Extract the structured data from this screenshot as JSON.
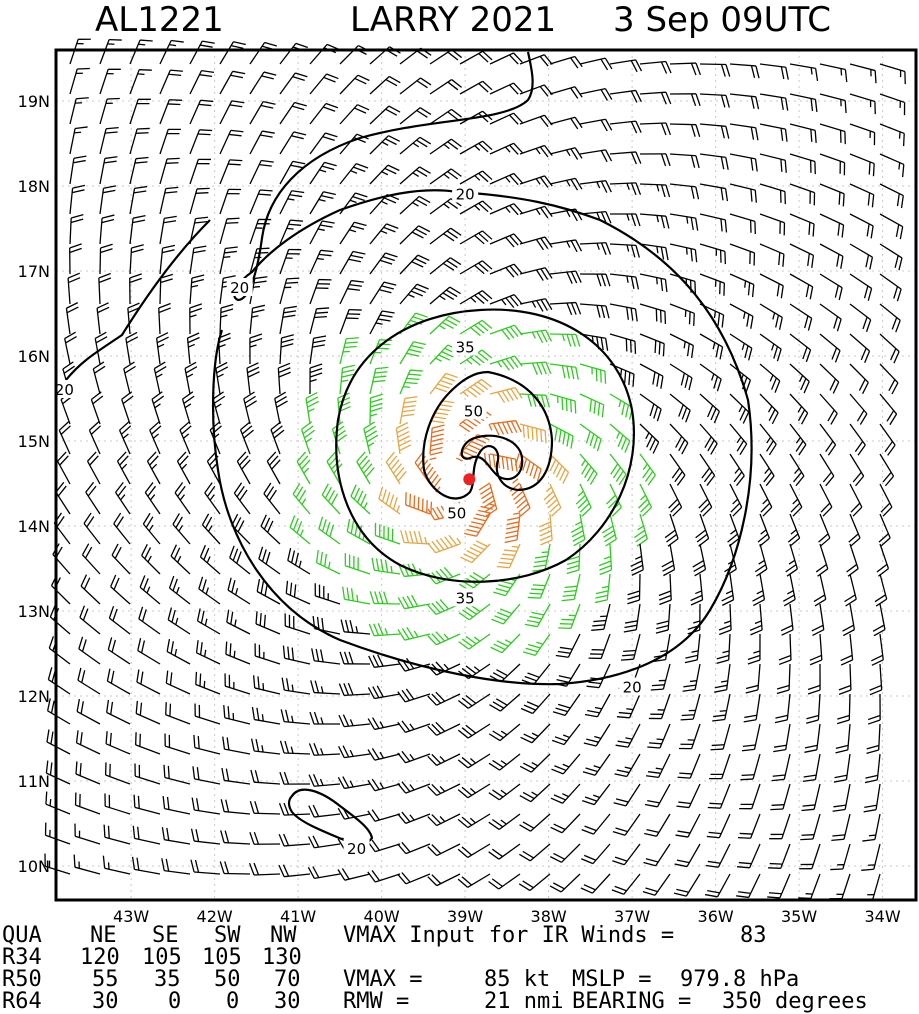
{
  "header": {
    "storm_id": "AL1221",
    "storm_title": "LARRY 2021",
    "date_time": "3 Sep 09UTC"
  },
  "chart_data": {
    "type": "wind-field-map",
    "lat_labels": [
      "10N",
      "11N",
      "12N",
      "13N",
      "14N",
      "15N",
      "16N",
      "17N",
      "18N",
      "19N"
    ],
    "lon_labels": [
      "43W",
      "42W",
      "41W",
      "40W",
      "39W",
      "38W",
      "37W",
      "36W",
      "35W",
      "34W"
    ],
    "lat_range": [
      9.6,
      19.6
    ],
    "lon_range": [
      43.9,
      33.6
    ],
    "grid": "dotted",
    "center": {
      "lat": 14.55,
      "lon": 38.95
    },
    "wind_speed_colors": {
      "below_34kt": "#000000",
      "34_to_49kt": "#2ecc1f",
      "50_to_63kt": "#e8a541",
      "64kt_plus": "#e86a1a",
      "center": "#ee2222"
    },
    "contours": [
      {
        "level": "20",
        "label_points": [
          {
            "lon": 39.0,
            "lat": 17.9
          },
          {
            "lon": 41.7,
            "lat": 16.8
          },
          {
            "lon": 43.8,
            "lat": 15.6
          },
          {
            "lon": 37.0,
            "lat": 12.1
          },
          {
            "lon": 40.3,
            "lat": 10.2
          }
        ]
      },
      {
        "level": "35",
        "label_points": [
          {
            "lon": 39.0,
            "lat": 16.1
          },
          {
            "lon": 39.0,
            "lat": 13.15
          }
        ]
      },
      {
        "level": "50",
        "label_points": [
          {
            "lon": 38.9,
            "lat": 15.35
          },
          {
            "lon": 39.1,
            "lat": 14.15
          }
        ]
      }
    ]
  },
  "table": {
    "headers": [
      "QUA",
      "NE",
      "SE",
      "SW",
      "NW"
    ],
    "rows": [
      {
        "label": "R34",
        "values": [
          "120",
          "105",
          "105",
          "130"
        ]
      },
      {
        "label": "R50",
        "values": [
          "55",
          "35",
          "50",
          "70"
        ]
      },
      {
        "label": "R64",
        "values": [
          "30",
          "0",
          "0",
          "30"
        ]
      }
    ]
  },
  "stats": {
    "vmax_ir_label": "VMAX Input for IR Winds =",
    "vmax_ir_value": "83",
    "vmax_label": "VMAX =",
    "vmax_value": "85 kt",
    "mslp_label": "MSLP =",
    "mslp_value": "979.8 hPa",
    "rmw_label": "RMW =",
    "rmw_value": "21 nmi",
    "bearing_label": "BEARING =",
    "bearing_value": "350 degrees"
  }
}
